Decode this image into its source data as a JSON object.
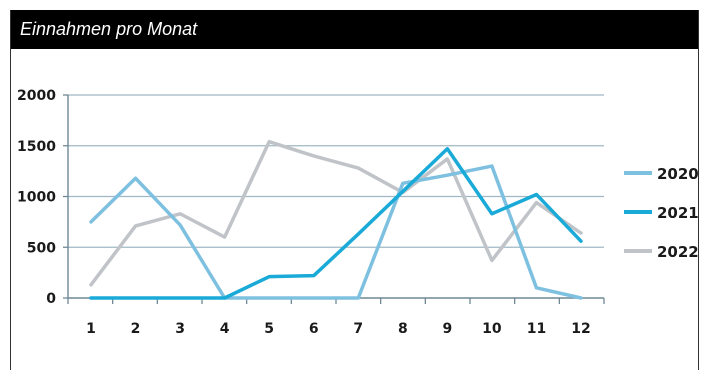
{
  "chart_data": {
    "type": "line",
    "title": "Einnahmen pro Monat",
    "categories": [
      "1",
      "2",
      "3",
      "4",
      "5",
      "6",
      "7",
      "8",
      "9",
      "10",
      "11",
      "12"
    ],
    "ylim": [
      0,
      2000
    ],
    "yticks": [
      "0",
      "500",
      "1000",
      "1500",
      "2000"
    ],
    "grid": true,
    "legend": "right",
    "series": [
      {
        "name": "2020",
        "color": "#7ec0e0",
        "values": [
          750,
          1180,
          720,
          0,
          0,
          0,
          0,
          1130,
          1210,
          1300,
          100,
          0
        ]
      },
      {
        "name": "2021",
        "color": "#1aaad8",
        "values": [
          0,
          0,
          0,
          0,
          210,
          220,
          630,
          1050,
          1470,
          830,
          1020,
          560
        ]
      },
      {
        "name": "2022",
        "color": "#c0c4c8",
        "values": [
          130,
          710,
          830,
          600,
          1540,
          1400,
          1280,
          1040,
          1370,
          370,
          940,
          640
        ]
      }
    ]
  }
}
